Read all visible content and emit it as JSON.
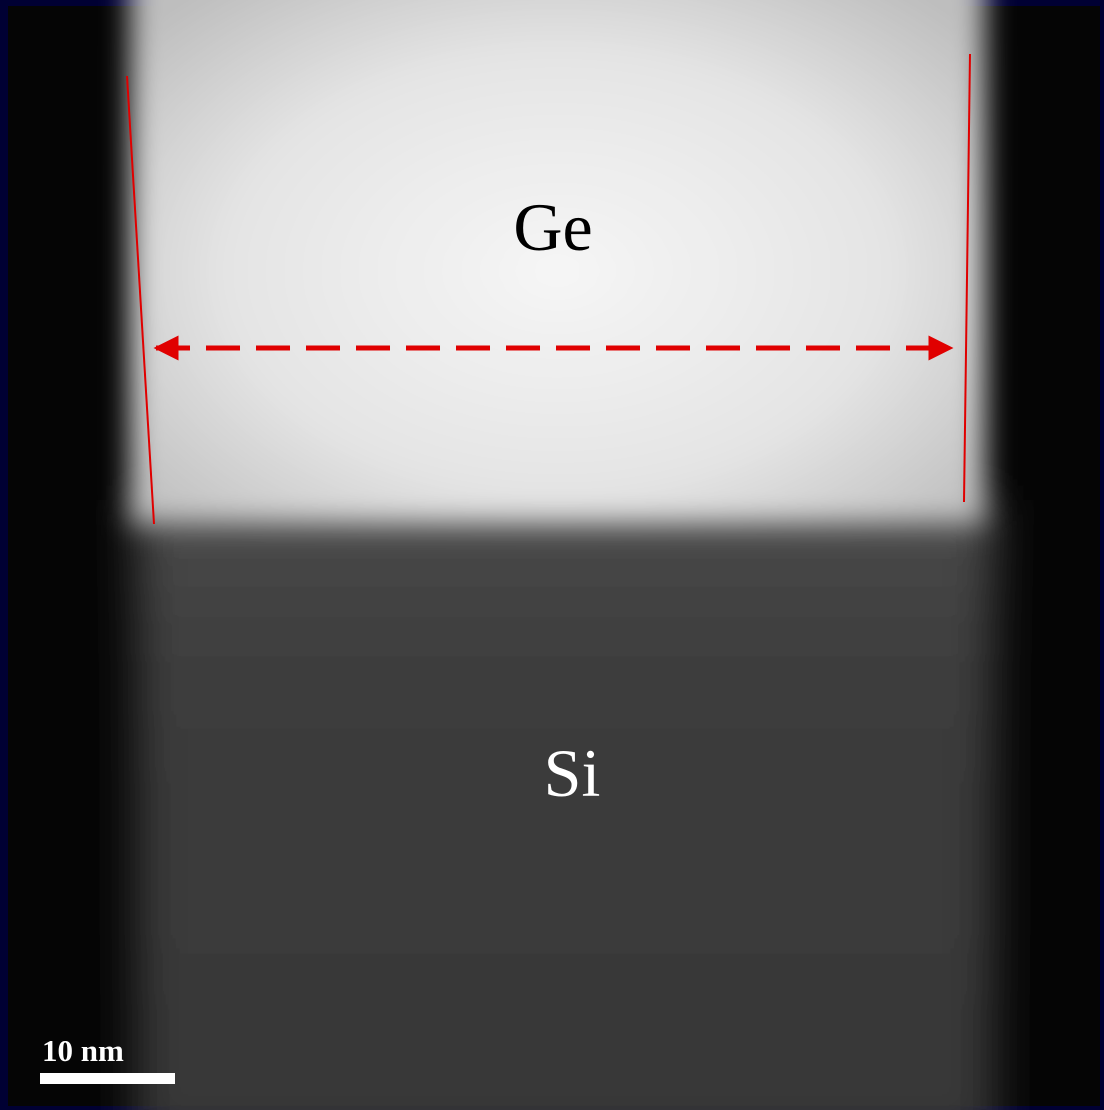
{
  "labels": {
    "top": "Ge",
    "bottom": "Si"
  },
  "scale_bar": {
    "label": "10 nm"
  }
}
